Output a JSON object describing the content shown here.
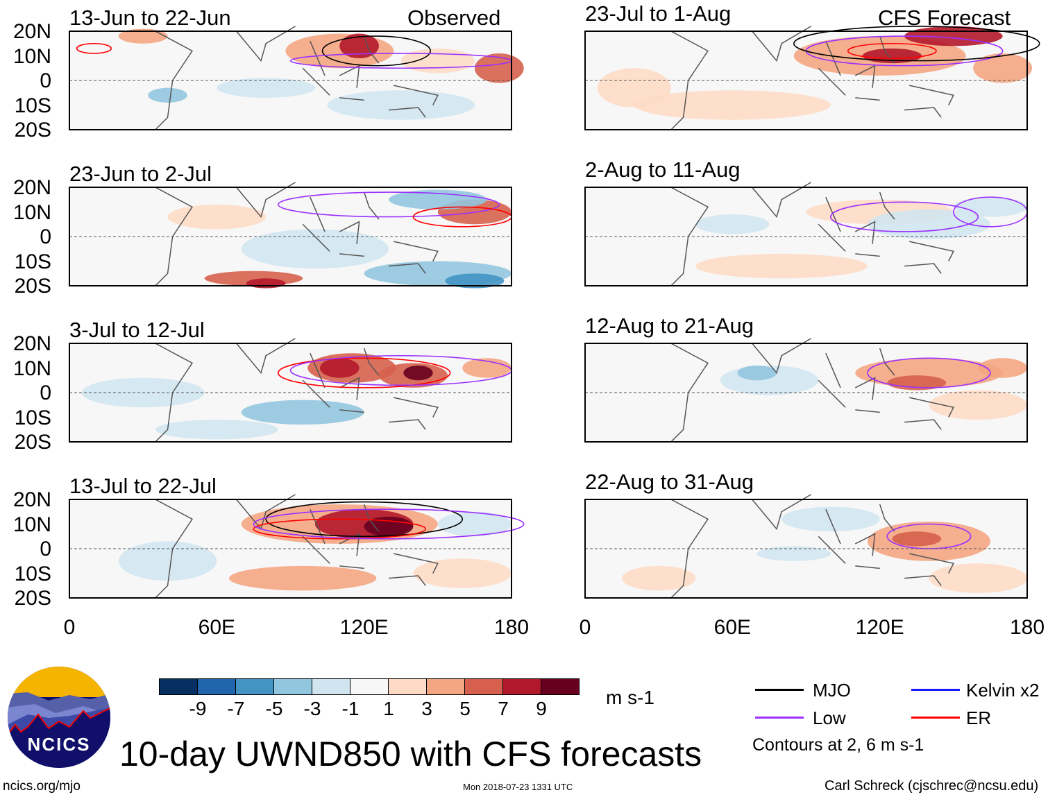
{
  "panels": [
    {
      "title": "13-Jun to 22-Jun",
      "label": "Observed"
    },
    {
      "title": "23-Jun to 2-Jul",
      "label": ""
    },
    {
      "title": "3-Jul to 12-Jul",
      "label": ""
    },
    {
      "title": "13-Jul to 22-Jul",
      "label": ""
    },
    {
      "title": "23-Jul to 1-Aug",
      "label": "CFS Forecast"
    },
    {
      "title": "2-Aug to 11-Aug",
      "label": ""
    },
    {
      "title": "12-Aug to 21-Aug",
      "label": ""
    },
    {
      "title": "22-Aug to 31-Aug",
      "label": ""
    }
  ],
  "y_ticks": [
    "20N",
    "10N",
    "0",
    "10S",
    "20S"
  ],
  "x_ticks": [
    "0",
    "60E",
    "120E",
    "180"
  ],
  "colorbar": {
    "colors": [
      "#053061",
      "#2166ac",
      "#4393c3",
      "#92c5de",
      "#d1e5f0",
      "#f7f7f7",
      "#fddbc7",
      "#f4a582",
      "#d6604d",
      "#b2182b",
      "#67001f"
    ],
    "labels": [
      "-9",
      "-7",
      "-5",
      "-3",
      "-1",
      "1",
      "3",
      "5",
      "7",
      "9"
    ],
    "units": "m s-1"
  },
  "legend": {
    "items": [
      {
        "label": "MJO",
        "color": "#000000"
      },
      {
        "label": "Kelvin x2",
        "color": "#1a1aff"
      },
      {
        "label": "Low",
        "color": "#9b30ff"
      },
      {
        "label": "ER",
        "color": "#ff0000"
      }
    ],
    "note": "Contours at 2, 6 m s-1"
  },
  "title": "10-day UWND850 with CFS forecasts",
  "logo_text": "NCICS",
  "footer": {
    "url": "ncics.org/mjo",
    "timestamp": "Mon 2018-07-23 1331 UTC",
    "author": "Carl Schreck (cjschrec@ncsu.edu)"
  }
}
